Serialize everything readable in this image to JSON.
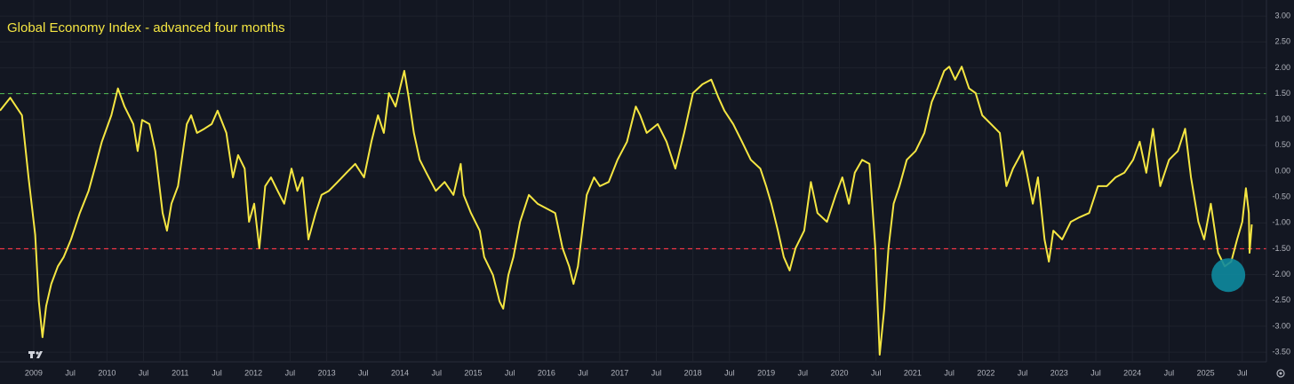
{
  "chart_data": {
    "type": "line",
    "title": "Global Economy Index - advanced four months",
    "title_color": "#f5e642",
    "color": "#f5e642",
    "x": [
      2008.54,
      2008.68,
      2008.84,
      2008.93,
      2009.02,
      2009.07,
      2009.12,
      2009.17,
      2009.24,
      2009.33,
      2009.41,
      2009.51,
      2009.63,
      2009.75,
      2009.85,
      2009.93,
      2010.06,
      2010.15,
      2010.24,
      2010.36,
      2010.42,
      2010.48,
      2010.58,
      2010.66,
      2010.76,
      2010.82,
      2010.88,
      2010.97,
      2011.09,
      2011.15,
      2011.23,
      2011.33,
      2011.43,
      2011.51,
      2011.63,
      2011.72,
      2011.79,
      2011.88,
      2011.94,
      2012.01,
      2012.08,
      2012.16,
      2012.24,
      2012.33,
      2012.42,
      2012.52,
      2012.6,
      2012.67,
      2012.75,
      2012.85,
      2012.93,
      2013.03,
      2013.15,
      2013.27,
      2013.39,
      2013.51,
      2013.61,
      2013.7,
      2013.78,
      2013.85,
      2013.94,
      2014.0,
      2014.06,
      2014.12,
      2014.19,
      2014.27,
      2014.36,
      2014.49,
      2014.61,
      2014.73,
      2014.83,
      2014.87,
      2014.97,
      2015.09,
      2015.15,
      2015.27,
      2015.36,
      2015.41,
      2015.48,
      2015.55,
      2015.64,
      2015.76,
      2015.88,
      2016.0,
      2016.12,
      2016.22,
      2016.31,
      2016.37,
      2016.43,
      2016.49,
      2016.55,
      2016.65,
      2016.73,
      2016.85,
      2016.97,
      2017.1,
      2017.22,
      2017.28,
      2017.37,
      2017.52,
      2017.64,
      2017.76,
      2017.88,
      2018.0,
      2018.13,
      2018.25,
      2018.35,
      2018.43,
      2018.55,
      2018.67,
      2018.79,
      2018.92,
      2019.0,
      2019.07,
      2019.16,
      2019.24,
      2019.32,
      2019.4,
      2019.52,
      2019.61,
      2019.7,
      2019.83,
      2019.95,
      2020.04,
      2020.13,
      2020.21,
      2020.31,
      2020.41,
      2020.49,
      2020.55,
      2020.61,
      2020.67,
      2020.74,
      2020.82,
      2020.92,
      2021.04,
      2021.16,
      2021.26,
      2021.34,
      2021.43,
      2021.5,
      2021.58,
      2021.67,
      2021.77,
      2021.86,
      2021.95,
      2022.07,
      2022.19,
      2022.28,
      2022.37,
      2022.5,
      2022.56,
      2022.64,
      2022.71,
      2022.8,
      2022.86,
      2022.92,
      2023.04,
      2023.16,
      2023.28,
      2023.41,
      2023.53,
      2023.65,
      2023.77,
      2023.89,
      2024.01,
      2024.1,
      2024.19,
      2024.28,
      2024.38,
      2024.5,
      2024.62,
      2024.72,
      2024.8,
      2024.9,
      2024.98,
      2025.07,
      2025.17,
      2025.26,
      2025.35,
      2025.43,
      2025.5,
      2025.55,
      2025.59,
      2025.6,
      2025.63
    ],
    "values": [
      1.17,
      1.42,
      1.08,
      -0.12,
      -1.23,
      -2.52,
      -3.21,
      -2.61,
      -2.18,
      -1.84,
      -1.66,
      -1.32,
      -0.81,
      -0.38,
      0.14,
      0.57,
      1.08,
      1.6,
      1.25,
      0.91,
      0.39,
      0.99,
      0.91,
      0.39,
      -0.81,
      -1.15,
      -0.63,
      -0.29,
      0.91,
      1.08,
      0.74,
      0.82,
      0.91,
      1.17,
      0.74,
      -0.12,
      0.31,
      0.05,
      -0.98,
      -0.63,
      -1.49,
      -0.29,
      -0.12,
      -0.38,
      -0.63,
      0.05,
      -0.38,
      -0.12,
      -1.32,
      -0.81,
      -0.46,
      -0.38,
      -0.21,
      -0.03,
      0.14,
      -0.12,
      0.57,
      1.08,
      0.74,
      1.51,
      1.25,
      1.6,
      1.94,
      1.42,
      0.74,
      0.22,
      -0.03,
      -0.38,
      -0.21,
      -0.46,
      0.14,
      -0.46,
      -0.81,
      -1.15,
      -1.66,
      -2.01,
      -2.52,
      -2.66,
      -2.01,
      -1.66,
      -0.98,
      -0.46,
      -0.63,
      -0.72,
      -0.81,
      -1.49,
      -1.84,
      -2.18,
      -1.84,
      -1.15,
      -0.46,
      -0.12,
      -0.29,
      -0.21,
      0.22,
      0.57,
      1.25,
      1.08,
      0.74,
      0.91,
      0.57,
      0.05,
      0.74,
      1.51,
      1.68,
      1.77,
      1.42,
      1.17,
      0.91,
      0.57,
      0.22,
      0.05,
      -0.29,
      -0.63,
      -1.15,
      -1.66,
      -1.92,
      -1.49,
      -1.15,
      -0.21,
      -0.81,
      -0.98,
      -0.46,
      -0.12,
      -0.63,
      -0.03,
      0.22,
      0.14,
      -1.49,
      -3.55,
      -2.69,
      -1.49,
      -0.63,
      -0.29,
      0.22,
      0.39,
      0.74,
      1.34,
      1.6,
      1.94,
      2.02,
      1.77,
      2.02,
      1.6,
      1.51,
      1.08,
      0.91,
      0.74,
      -0.29,
      0.05,
      0.39,
      -0.03,
      -0.63,
      -0.12,
      -1.32,
      -1.75,
      -1.15,
      -1.32,
      -0.98,
      -0.89,
      -0.81,
      -0.29,
      -0.29,
      -0.12,
      -0.03,
      0.22,
      0.57,
      -0.03,
      0.82,
      -0.29,
      0.22,
      0.39,
      0.82,
      -0.12,
      -0.98,
      -1.32,
      -0.63,
      -1.58,
      -1.84,
      -1.75,
      -1.32,
      -0.98,
      -0.33,
      -0.81,
      -1.58,
      -1.03
    ],
    "xlim": [
      2008.54,
      2025.83
    ],
    "ylim": [
      -3.67,
      3.31
    ],
    "xticks": [
      {
        "value": 2009,
        "label": "2009"
      },
      {
        "value": 2009.5,
        "label": "Jul"
      },
      {
        "value": 2010,
        "label": "2010"
      },
      {
        "value": 2010.5,
        "label": "Jul"
      },
      {
        "value": 2011,
        "label": "2011"
      },
      {
        "value": 2011.5,
        "label": "Jul"
      },
      {
        "value": 2012,
        "label": "2012"
      },
      {
        "value": 2012.5,
        "label": "Jul"
      },
      {
        "value": 2013,
        "label": "2013"
      },
      {
        "value": 2013.5,
        "label": "Jul"
      },
      {
        "value": 2014,
        "label": "2014"
      },
      {
        "value": 2014.5,
        "label": "Jul"
      },
      {
        "value": 2015,
        "label": "2015"
      },
      {
        "value": 2015.5,
        "label": "Jul"
      },
      {
        "value": 2016,
        "label": "2016"
      },
      {
        "value": 2016.5,
        "label": "Jul"
      },
      {
        "value": 2017,
        "label": "2017"
      },
      {
        "value": 2017.5,
        "label": "Jul"
      },
      {
        "value": 2018,
        "label": "2018"
      },
      {
        "value": 2018.5,
        "label": "Jul"
      },
      {
        "value": 2019,
        "label": "2019"
      },
      {
        "value": 2019.5,
        "label": "Jul"
      },
      {
        "value": 2020,
        "label": "2020"
      },
      {
        "value": 2020.5,
        "label": "Jul"
      },
      {
        "value": 2021,
        "label": "2021"
      },
      {
        "value": 2021.5,
        "label": "Jul"
      },
      {
        "value": 2022,
        "label": "2022"
      },
      {
        "value": 2022.5,
        "label": "Jul"
      },
      {
        "value": 2023,
        "label": "2023"
      },
      {
        "value": 2023.5,
        "label": "Jul"
      },
      {
        "value": 2024,
        "label": "2024"
      },
      {
        "value": 2024.5,
        "label": "Jul"
      },
      {
        "value": 2025,
        "label": "2025"
      },
      {
        "value": 2025.5,
        "label": "Jul"
      }
    ],
    "yticks": [
      {
        "value": 3,
        "label": "3.00"
      },
      {
        "value": 2.5,
        "label": "2.50"
      },
      {
        "value": 2,
        "label": "2.00"
      },
      {
        "value": 1.5,
        "label": "1.50"
      },
      {
        "value": 1,
        "label": "1.00"
      },
      {
        "value": 0.5,
        "label": "0.50"
      },
      {
        "value": 0,
        "label": "0.00"
      },
      {
        "value": -0.5,
        "label": "-0.50"
      },
      {
        "value": -1,
        "label": "-1.00"
      },
      {
        "value": -1.5,
        "label": "-1.50"
      },
      {
        "value": -2,
        "label": "-2.00"
      },
      {
        "value": -2.5,
        "label": "-2.50"
      },
      {
        "value": -3,
        "label": "-3.00"
      },
      {
        "value": -3.5,
        "label": "-3.50"
      }
    ],
    "grid": true,
    "reference_lines": [
      {
        "value": 1.5,
        "color": "#4caf50"
      },
      {
        "value": -1.5,
        "color": "#f23645"
      }
    ],
    "highlight": {
      "x": 2025.31,
      "y": -2.01,
      "color": "#0e8a9e"
    }
  }
}
